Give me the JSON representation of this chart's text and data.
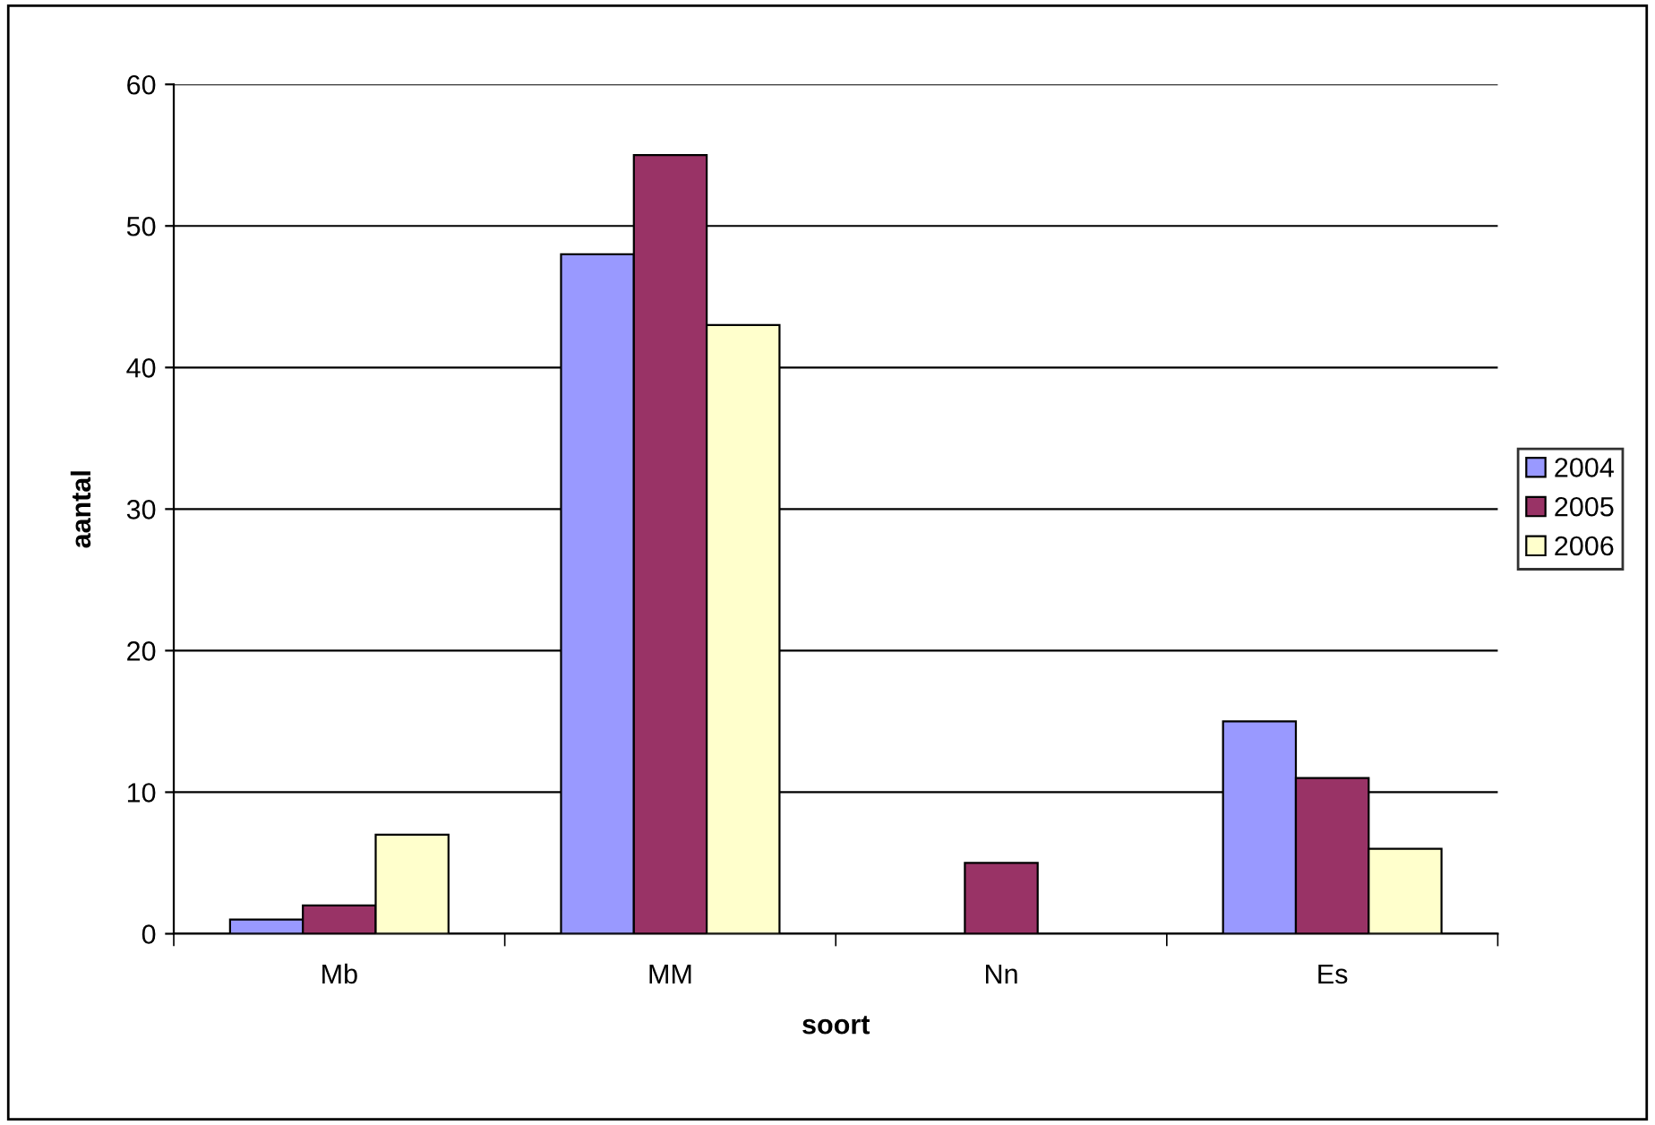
{
  "chart_data": {
    "type": "bar",
    "xlabel": "soort",
    "ylabel": "aantal",
    "categories": [
      "Mb",
      "MM",
      "Nn",
      "Es"
    ],
    "series": [
      {
        "name": "2004",
        "color": "#9999ff",
        "values": [
          1,
          48,
          null,
          15
        ]
      },
      {
        "name": "2005",
        "color": "#993366",
        "values": [
          2,
          55,
          5,
          11
        ]
      },
      {
        "name": "2006",
        "color": "#ffffcc",
        "values": [
          7,
          43,
          null,
          6
        ]
      }
    ],
    "ylim": [
      0,
      60
    ],
    "yticks": [
      0,
      10,
      20,
      30,
      40,
      50,
      60
    ],
    "grid": "y",
    "legend": "right"
  }
}
